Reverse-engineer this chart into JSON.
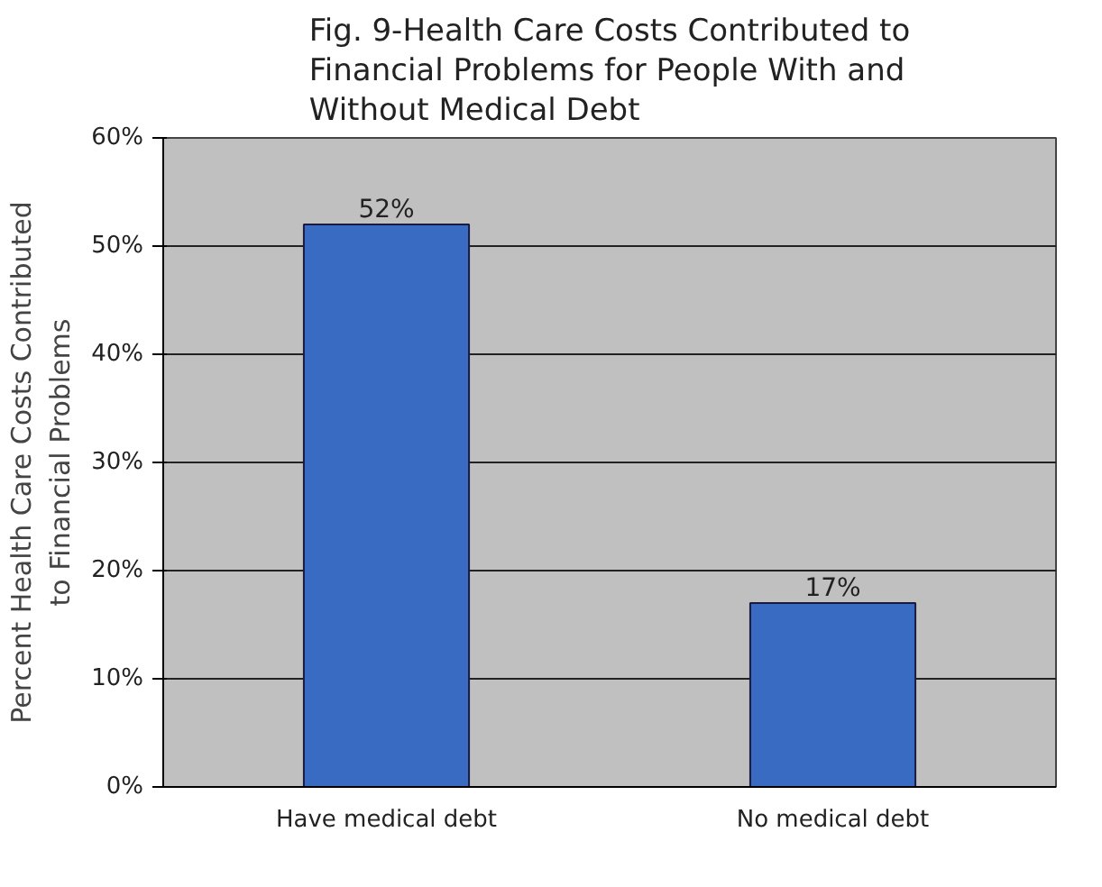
{
  "chart_data": {
    "type": "bar",
    "title": "Fig. 9-Health Care Costs Contributed to Financial Problems for People With and Without Medical Debt",
    "ylabel": "Percent Health Care Costs Contributed to Financial Problems",
    "categories": [
      "Have medical debt",
      "No medical debt"
    ],
    "values": [
      52,
      17
    ],
    "color": "#3a6bc2",
    "ylim": [
      0,
      60
    ],
    "yticks": [
      {
        "value": 0,
        "label": "0%"
      },
      {
        "value": 10,
        "label": "10%"
      },
      {
        "value": 20,
        "label": "20%"
      },
      {
        "value": 30,
        "label": "30%"
      },
      {
        "value": 40,
        "label": "40%"
      },
      {
        "value": 50,
        "label": "50%"
      },
      {
        "value": 60,
        "label": "60%"
      }
    ],
    "grid": "y",
    "value_labels": [
      "52%",
      "17%"
    ]
  }
}
